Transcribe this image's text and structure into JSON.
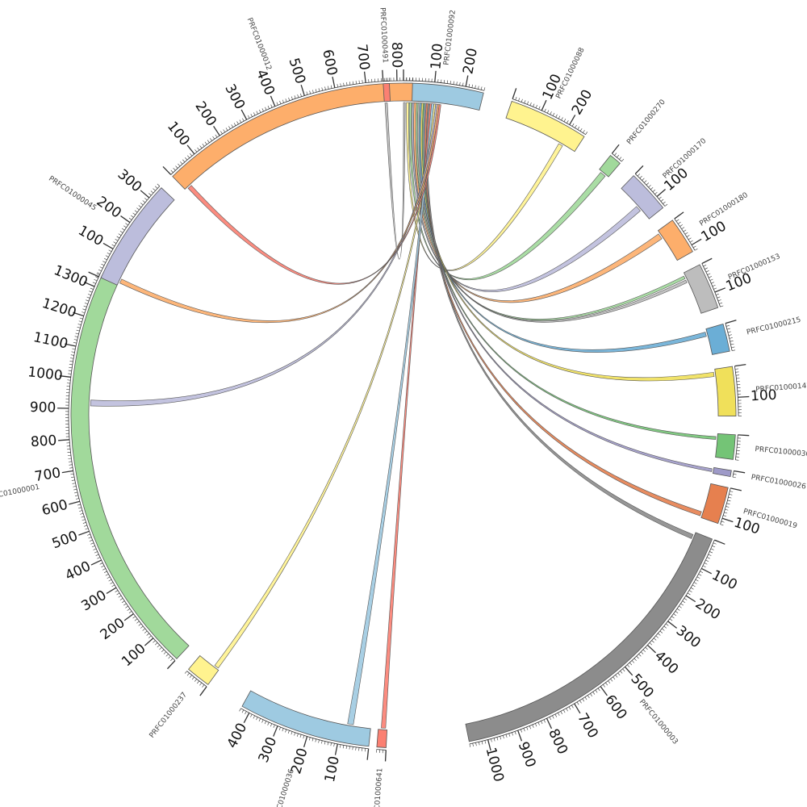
{
  "chart_data": {
    "type": "chord",
    "title": "",
    "tick_step": 100,
    "minor_tick_step": 10,
    "segments": [
      {
        "name": "PRFC01000092",
        "length": 260,
        "color": "#9ecae1",
        "start_deg": 0.0
      },
      {
        "name": "PRFC01000088",
        "length": 260,
        "color": "#fff38f",
        "start_deg": 19.0
      },
      {
        "name": "PRFC01000270",
        "length": 40,
        "color": "#a1d99b",
        "start_deg": 38.5
      },
      {
        "name": "PRFC01000170",
        "length": 140,
        "color": "#bcbddc",
        "start_deg": 43.8
      },
      {
        "name": "PRFC01000180",
        "length": 120,
        "color": "#fdae6b",
        "start_deg": 54.0
      },
      {
        "name": "PRFC01000153",
        "length": 150,
        "color": "#bdbdbd",
        "start_deg": 63.0
      },
      {
        "name": "PRFC01000215",
        "length": 90,
        "color": "#6baed6",
        "start_deg": 74.0
      },
      {
        "name": "PRFC01000142",
        "length": 160,
        "color": "#f0e05a",
        "start_deg": 81.5
      },
      {
        "name": "PRFC01000030",
        "length": 80,
        "color": "#74c476",
        "start_deg": 93.3
      },
      {
        "name": "PRFC01000026",
        "length": 20,
        "color": "#9e9ac8",
        "start_deg": 99.5
      },
      {
        "name": "PRFC01000019",
        "length": 120,
        "color": "#e6804f",
        "start_deg": 102.5
      },
      {
        "name": "PRFC01000003",
        "length": 1060,
        "color": "#8c8c8c",
        "start_deg": 111.8
      },
      {
        "name": "PRFC01000641",
        "length": 30,
        "color": "#fb8072",
        "start_deg": 183.0
      },
      {
        "name": "PRFC01000036",
        "length": 430,
        "color": "#9ecae1",
        "start_deg": 186.0
      },
      {
        "name": "PRFC01000237",
        "length": 80,
        "color": "#fff38f",
        "start_deg": 216.0
      },
      {
        "name": "PRFC01000001",
        "length": 1340,
        "color": "#a1d99b",
        "start_deg": 223.0
      },
      {
        "name": "PRFC01000045",
        "length": 350,
        "color": "#bcbddc",
        "start_deg": 294.5
      },
      {
        "name": "PRFC01000012",
        "length": 850,
        "color": "#fdae6b",
        "start_deg": 316.0
      },
      {
        "name": "PRFC01000491",
        "length": 20,
        "color": "#fb8072",
        "start_deg": 356.5
      }
    ],
    "links": [
      {
        "source": "PRFC01000092",
        "source_pos": [
          10,
          18
        ],
        "target": "PRFC01000088",
        "target_pos": [
          200,
          215
        ],
        "color": "#fff38f"
      },
      {
        "source": "PRFC01000092",
        "source_pos": [
          20,
          28
        ],
        "target": "PRFC01000270",
        "target_pos": [
          10,
          30
        ],
        "color": "#a1d99b"
      },
      {
        "source": "PRFC01000092",
        "source_pos": [
          30,
          36
        ],
        "target": "PRFC01000170",
        "target_pos": [
          80,
          100
        ],
        "color": "#bcbddc"
      },
      {
        "source": "PRFC01000092",
        "source_pos": [
          36,
          44
        ],
        "target": "PRFC01000180",
        "target_pos": [
          10,
          30
        ],
        "color": "#fdae6b"
      },
      {
        "source": "PRFC01000092",
        "source_pos": [
          44,
          50
        ],
        "target": "PRFC01000153",
        "target_pos": [
          10,
          20
        ],
        "color": "#a1d99b"
      },
      {
        "source": "PRFC01000092",
        "source_pos": [
          50,
          56
        ],
        "target": "PRFC01000153",
        "target_pos": [
          25,
          35
        ],
        "color": "#bdbdbd"
      },
      {
        "source": "PRFC01000092",
        "source_pos": [
          56,
          62
        ],
        "target": "PRFC01000215",
        "target_pos": [
          10,
          25
        ],
        "color": "#6baed6"
      },
      {
        "source": "PRFC01000092",
        "source_pos": [
          62,
          68
        ],
        "target": "PRFC01000142",
        "target_pos": [
          10,
          25
        ],
        "color": "#f0e05a"
      },
      {
        "source": "PRFC01000092",
        "source_pos": [
          68,
          73
        ],
        "target": "PRFC01000030",
        "target_pos": [
          10,
          20
        ],
        "color": "#74c476"
      },
      {
        "source": "PRFC01000092",
        "source_pos": [
          73,
          78
        ],
        "target": "PRFC01000026",
        "target_pos": [
          5,
          15
        ],
        "color": "#9e9ac8"
      },
      {
        "source": "PRFC01000092",
        "source_pos": [
          78,
          84
        ],
        "target": "PRFC01000019",
        "target_pos": [
          100,
          115
        ],
        "color": "#e6804f"
      },
      {
        "source": "PRFC01000092",
        "source_pos": [
          84,
          90
        ],
        "target": "PRFC01000003",
        "target_pos": [
          10,
          25
        ],
        "color": "#8c8c8c"
      },
      {
        "source": "PRFC01000092",
        "source_pos": [
          90,
          96
        ],
        "target": "PRFC01000641",
        "target_pos": [
          5,
          20
        ],
        "color": "#fb8072"
      },
      {
        "source": "PRFC01000092",
        "source_pos": [
          96,
          104
        ],
        "target": "PRFC01000036",
        "target_pos": [
          60,
          80
        ],
        "color": "#9ecae1"
      },
      {
        "source": "PRFC01000092",
        "source_pos": [
          104,
          110
        ],
        "target": "PRFC01000237",
        "target_pos": [
          5,
          20
        ],
        "color": "#fff38f"
      },
      {
        "source": "PRFC01000092",
        "source_pos": [
          110,
          116
        ],
        "target": "PRFC01000001",
        "target_pos": [
          910,
          930
        ],
        "color": "#bcbddc"
      },
      {
        "source": "PRFC01000092",
        "source_pos": [
          116,
          122
        ],
        "target": "PRFC01000045",
        "target_pos": [
          10,
          25
        ],
        "color": "#fdae6b"
      },
      {
        "source": "PRFC01000092",
        "source_pos": [
          122,
          128
        ],
        "target": "PRFC01000012",
        "target_pos": [
          10,
          25
        ],
        "color": "#fb8072"
      },
      {
        "source": "PRFC01000092",
        "source_pos": [
          0,
          6
        ],
        "target": "PRFC01000491",
        "target_pos": [
          2,
          10
        ],
        "color": "#bdbdbd"
      }
    ]
  }
}
